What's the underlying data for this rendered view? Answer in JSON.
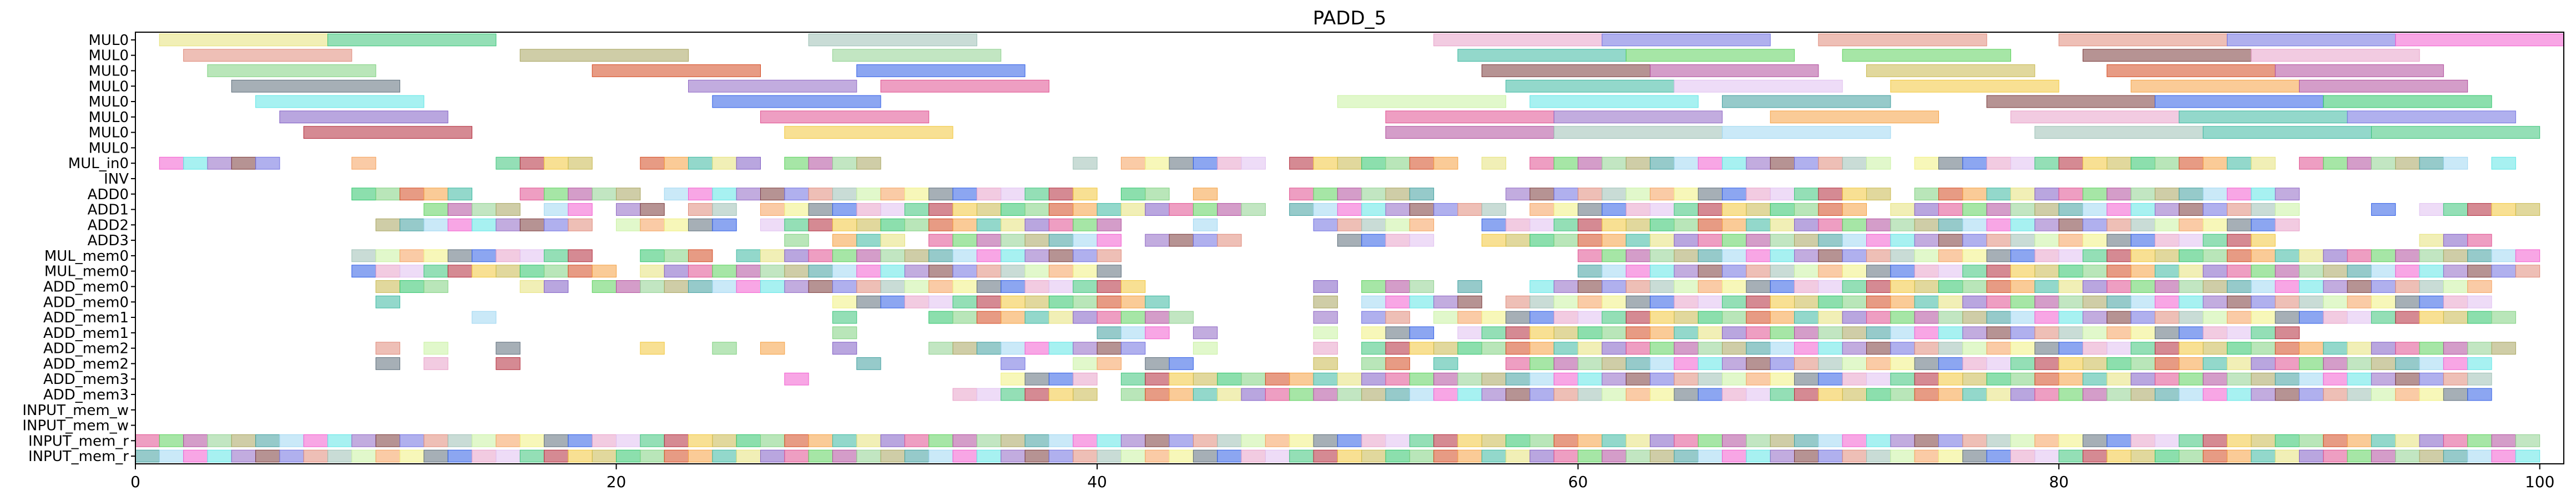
{
  "chart_data": {
    "type": "gantt",
    "title": "PADD_5",
    "xlabel": "",
    "ylabel": "",
    "xlim": [
      0,
      101
    ],
    "x_ticks": [
      0,
      20,
      40,
      60,
      80,
      100
    ],
    "grid": false,
    "rows": [
      "MUL0",
      "MUL0",
      "MUL0",
      "MUL0",
      "MUL0",
      "MUL0",
      "MUL0",
      "MUL0",
      "MUL_in0",
      "INV",
      "ADD0",
      "ADD1",
      "ADD2",
      "ADD3",
      "MUL_mem0",
      "MUL_mem0",
      "ADD_mem0",
      "ADD_mem0",
      "ADD_mem1",
      "ADD_mem1",
      "ADD_mem2",
      "ADD_mem2",
      "ADD_mem3",
      "ADD_mem3",
      "INPUT_mem_w",
      "INPUT_mem_w",
      "INPUT_mem_r",
      "INPUT_mem_r"
    ],
    "palette": [
      "#e6e27a",
      "#3cc47a",
      "#e08a7a",
      "#8fd18f",
      "#7fd17f",
      "#5c6d7a",
      "#5ee6e6",
      "#7f5cc4",
      "#b22a3a",
      "#9cc0b5",
      "#a8a45e",
      "#d4491f",
      "#2e5de6",
      "#8f67c4",
      "#e04f8f",
      "#f2c73a",
      "#c9f2a1",
      "#3f9f9f",
      "#f5a142",
      "#e8a0c8",
      "#7a3a3a",
      "#5cd15c",
      "#c8b84d",
      "#f5a15c",
      "#9fd7f2",
      "#3bb8a0",
      "#e0c0f0",
      "#6f6fe0",
      "#b04c9c",
      "#2ec46a",
      "#f0f080",
      "#f25ccf"
    ],
    "mul_bars": [
      {
        "row": 0,
        "start": 1,
        "end": 8,
        "c": 0
      },
      {
        "row": 0,
        "start": 8,
        "end": 15,
        "c": 1
      },
      {
        "row": 0,
        "start": 28,
        "end": 35,
        "c": 9
      },
      {
        "row": 0,
        "start": 54,
        "end": 61,
        "c": 19
      },
      {
        "row": 0,
        "start": 61,
        "end": 68,
        "c": 27
      },
      {
        "row": 0,
        "start": 70,
        "end": 77,
        "c": 2
      },
      {
        "row": 0,
        "start": 80,
        "end": 87,
        "c": 2
      },
      {
        "row": 0,
        "start": 87,
        "end": 94,
        "c": 27
      },
      {
        "row": 0,
        "start": 94,
        "end": 101,
        "c": 31
      },
      {
        "row": 1,
        "start": 2,
        "end": 9,
        "c": 2
      },
      {
        "row": 1,
        "start": 16,
        "end": 23,
        "c": 10
      },
      {
        "row": 1,
        "start": 29,
        "end": 36,
        "c": 3
      },
      {
        "row": 1,
        "start": 55,
        "end": 62,
        "c": 25
      },
      {
        "row": 1,
        "start": 62,
        "end": 69,
        "c": 21
      },
      {
        "row": 1,
        "start": 71,
        "end": 78,
        "c": 21
      },
      {
        "row": 1,
        "start": 81,
        "end": 88,
        "c": 20
      },
      {
        "row": 1,
        "start": 88,
        "end": 95,
        "c": 19
      },
      {
        "row": 2,
        "start": 3,
        "end": 10,
        "c": 4
      },
      {
        "row": 2,
        "start": 19,
        "end": 26,
        "c": 11
      },
      {
        "row": 2,
        "start": 30,
        "end": 37,
        "c": 12
      },
      {
        "row": 2,
        "start": 56,
        "end": 63,
        "c": 20
      },
      {
        "row": 2,
        "start": 63,
        "end": 70,
        "c": 28
      },
      {
        "row": 2,
        "start": 72,
        "end": 79,
        "c": 22
      },
      {
        "row": 2,
        "start": 82,
        "end": 89,
        "c": 11
      },
      {
        "row": 2,
        "start": 89,
        "end": 96,
        "c": 28
      },
      {
        "row": 3,
        "start": 4,
        "end": 11,
        "c": 5
      },
      {
        "row": 3,
        "start": 23,
        "end": 30,
        "c": 13
      },
      {
        "row": 3,
        "start": 31,
        "end": 38,
        "c": 14
      },
      {
        "row": 3,
        "start": 57,
        "end": 64,
        "c": 25
      },
      {
        "row": 3,
        "start": 64,
        "end": 71,
        "c": 26
      },
      {
        "row": 3,
        "start": 73,
        "end": 80,
        "c": 15
      },
      {
        "row": 3,
        "start": 83,
        "end": 90,
        "c": 18
      },
      {
        "row": 3,
        "start": 90,
        "end": 97,
        "c": 28
      },
      {
        "row": 4,
        "start": 5,
        "end": 12,
        "c": 6
      },
      {
        "row": 4,
        "start": 24,
        "end": 31,
        "c": 12
      },
      {
        "row": 4,
        "start": 50,
        "end": 57,
        "c": 16
      },
      {
        "row": 4,
        "start": 58,
        "end": 65,
        "c": 6
      },
      {
        "row": 4,
        "start": 66,
        "end": 73,
        "c": 17
      },
      {
        "row": 4,
        "start": 77,
        "end": 84,
        "c": 20
      },
      {
        "row": 4,
        "start": 84,
        "end": 91,
        "c": 12
      },
      {
        "row": 4,
        "start": 91,
        "end": 98,
        "c": 29
      },
      {
        "row": 5,
        "start": 6,
        "end": 13,
        "c": 7
      },
      {
        "row": 5,
        "start": 26,
        "end": 33,
        "c": 14
      },
      {
        "row": 5,
        "start": 52,
        "end": 59,
        "c": 14
      },
      {
        "row": 5,
        "start": 59,
        "end": 66,
        "c": 13
      },
      {
        "row": 5,
        "start": 68,
        "end": 75,
        "c": 18
      },
      {
        "row": 5,
        "start": 78,
        "end": 85,
        "c": 19
      },
      {
        "row": 5,
        "start": 85,
        "end": 92,
        "c": 25
      },
      {
        "row": 5,
        "start": 92,
        "end": 99,
        "c": 27
      },
      {
        "row": 6,
        "start": 7,
        "end": 14,
        "c": 8
      },
      {
        "row": 6,
        "start": 27,
        "end": 34,
        "c": 15
      },
      {
        "row": 6,
        "start": 52,
        "end": 59,
        "c": 28
      },
      {
        "row": 6,
        "start": 59,
        "end": 66,
        "c": 9
      },
      {
        "row": 6,
        "start": 66,
        "end": 73,
        "c": 24
      },
      {
        "row": 6,
        "start": 79,
        "end": 86,
        "c": 9
      },
      {
        "row": 6,
        "start": 86,
        "end": 93,
        "c": 25
      },
      {
        "row": 6,
        "start": 93,
        "end": 100,
        "c": 1
      }
    ],
    "cells": [
      [
        0,
        1,
        2,
        3,
        4,
        5,
        6,
        7,
        8,
        9,
        10,
        11,
        12,
        13,
        14,
        15,
        16,
        17,
        18,
        19,
        20,
        21,
        22,
        23,
        24,
        25,
        26,
        27,
        28,
        29,
        30,
        31,
        32,
        33,
        34,
        35,
        36,
        37,
        38,
        39,
        40,
        41,
        42,
        43,
        44,
        45,
        46,
        47,
        48,
        49,
        50,
        51,
        52,
        53,
        54,
        55,
        56,
        57,
        58,
        59,
        60,
        61,
        62,
        63,
        64,
        65,
        66,
        67,
        68,
        69,
        70,
        71,
        72,
        73,
        74,
        75,
        76,
        77,
        78,
        79,
        80,
        81,
        82,
        83,
        84,
        85,
        86,
        87,
        88,
        89,
        90,
        91,
        92,
        93,
        94,
        95,
        96,
        97,
        98,
        99,
        100
      ],
      [
        8,
        "0111110001000001111001111101111000000001011111101111111010111111111111111011111111111111101111111010"
      ],
      [
        9,
        "0000000000000000000000000000000000000000000000000000000000000000000000000000000000000000000000000000"
      ],
      [
        10,
        "0000000001111100111110111111111111111111011010001111110001111111111111111011111111111111110000000000"
      ],
      [
        11,
        "0000000000001111011011011011111111111111111111101111111110111111111111110111111111111111110001011111"
      ],
      [
        12,
        "0000000000111111111011111011111111111111100010000111110011111111111111111111111111111111110000000000"
      ],
      [
        13,
        "0000000000000000000000000001011101111111101111000011110011111111111111111111111111111111100000011100"
      ],
      [
        14,
        "0000000001111111111001110111111111111111100000000000000000001111111111111111111111111111111111111111"
      ],
      [
        15,
        "0000000001111111111101111111111111111111100000000000000000001111111111111111111111111111111111111111"
      ],
      [
        16,
        "0000000000111000110111111111111111111111110000000101110100111111111111111111111111111111111111111100"
      ],
      [
        17,
        "0000000000100000000000000000011111111111111000000101111101111111111111111111111111111111111111111100"
      ],
      [
        18,
        "0000000000000010000000000000010001111111111100000101101111111111111111111111111111111111111111111110"
      ],
      [
        19,
        "0000000000000000000000000000010000000000111010000101110111111111111111111111111111111111110000000000"
      ],
      [
        20,
        "0000000000101001000001001010010001111111110010000101111111111111111111111111111111111111111111111110"
      ],
      [
        21,
        "0000000000101001000000000000001000001001101100000101101001111111111111111111111111111111111111111100"
      ],
      [
        22,
        "0000000000000000000000000001000000001111011111111111111111111111111111111111111111111111111111111100"
      ],
      [
        23,
        "0000000000000000000000000000000000111111011111111111111111111111111111111111111111111111111111111100"
      ],
      [
        24,
        "0000000000000000000000000000000000000000000000000000000000000000000000000000000000000000000000000000"
      ],
      [
        25,
        "0000000000000000000000000000000000000000000000000000000000000000000000000000000000000000000000000000"
      ],
      [
        26,
        "1111111111111111111111111111111111111111111111111111111111111111111111111111111111111111111111111111"
      ],
      [
        27,
        "1111111111111111111111111111111111111111111111111111111111111111111111111111111111111111111111111111"
      ]
    ]
  }
}
